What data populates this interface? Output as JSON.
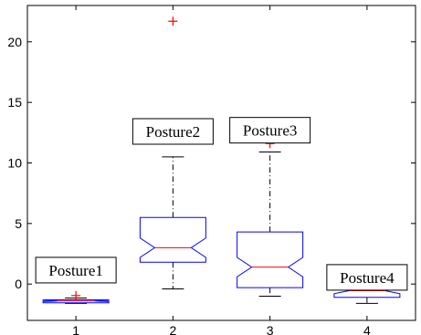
{
  "chart_data": {
    "type": "box",
    "title": "",
    "xlabel": "",
    "ylabel": "",
    "categories": [
      "1",
      "2",
      "3",
      "4"
    ],
    "ylim": [
      -3,
      23
    ],
    "yticks": [
      0,
      5,
      10,
      15,
      20
    ],
    "ytick_labels": [
      "0",
      "5",
      "10",
      "15",
      "20"
    ],
    "grid": false,
    "boxes": [
      {
        "category": "1",
        "whisker_low": -1.6,
        "q1": -1.55,
        "median": -1.4,
        "q3": -1.3,
        "whisker_high": -1.15,
        "notch_low": -1.45,
        "notch_high": -1.35,
        "outliers": [
          -0.95
        ]
      },
      {
        "category": "2",
        "whisker_low": -0.4,
        "q1": 1.8,
        "median": 3.0,
        "q3": 5.5,
        "whisker_high": 10.5,
        "notch_low": 2.2,
        "notch_high": 3.8,
        "outliers": [
          21.7
        ]
      },
      {
        "category": "3",
        "whisker_low": -1.0,
        "q1": -0.3,
        "median": 1.4,
        "q3": 4.3,
        "whisker_high": 10.9,
        "notch_low": 0.6,
        "notch_high": 2.2,
        "outliers": [
          11.6
        ]
      },
      {
        "category": "4",
        "whisker_low": -1.6,
        "q1": -1.1,
        "median": -0.55,
        "q3": -0.05,
        "whisker_high": 0.4,
        "notch_low": -0.8,
        "notch_high": -0.3,
        "outliers": []
      }
    ],
    "annotations": [
      {
        "text": "Posture1",
        "category": "1",
        "y": 1.15
      },
      {
        "text": "Posture2",
        "category": "2",
        "y": 12.6
      },
      {
        "text": "Posture3",
        "category": "3",
        "y": 12.7
      },
      {
        "text": "Posture4",
        "category": "4",
        "y": 0.55
      }
    ],
    "colors": {
      "box": "#0000ff",
      "median": "#ff0000",
      "whisker": "#000000",
      "outlier": "#ff0000",
      "axes": "#000000"
    }
  }
}
